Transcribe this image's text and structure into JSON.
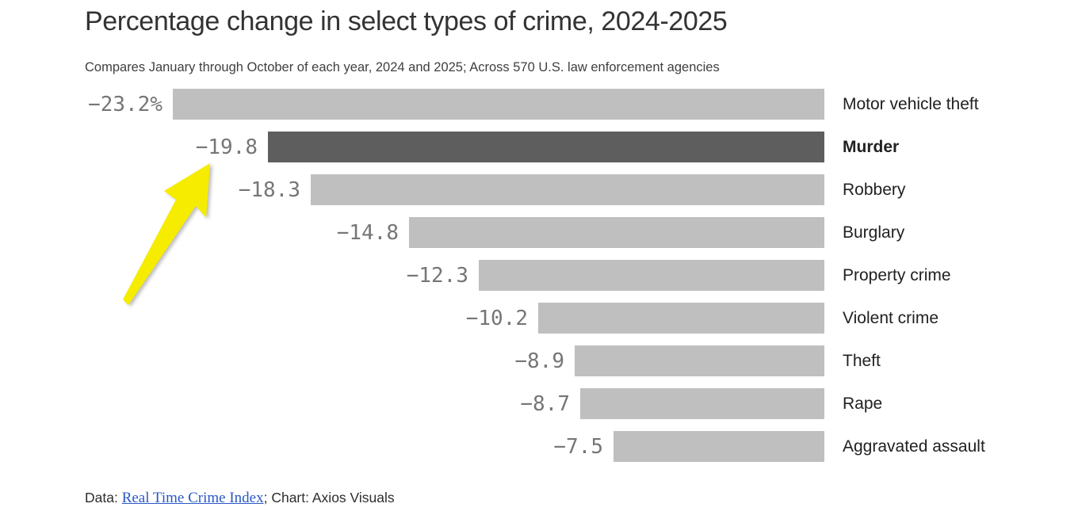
{
  "title": "Percentage change in select types of crime, 2024-2025",
  "subtitle": "Compares January through October of each year, 2024 and 2025; Across 570 U.S. law enforcement agencies",
  "chart_data": {
    "type": "bar",
    "orientation": "horizontal",
    "unit": "percent change",
    "categories": [
      "Motor vehicle theft",
      "Murder",
      "Robbery",
      "Burglary",
      "Property crime",
      "Violent crime",
      "Theft",
      "Rape",
      "Aggravated assault"
    ],
    "values": [
      -23.2,
      -19.8,
      -18.3,
      -14.8,
      -12.3,
      -10.2,
      -8.9,
      -8.7,
      -7.5
    ],
    "value_labels": [
      "−23.2%",
      "−19.8",
      "−18.3",
      "−14.8",
      "−12.3",
      "−10.2",
      "−8.9",
      "−8.7",
      "−7.5"
    ],
    "highlighted_category": "Murder",
    "bars_right_aligned": true,
    "gridlines": false,
    "value_range": [
      -23.2,
      0
    ],
    "annotation": {
      "shape": "arrow",
      "description": "hand-drawn yellow arrow pointing at the Murder value −19.8",
      "color": "#f6ec00"
    }
  },
  "colors": {
    "bar": "#bfbfbf",
    "bar_highlight": "#5e5e5e",
    "value_label": "#767676",
    "arrow": "#f6ec00",
    "link": "#2a58c6",
    "title": "#333333"
  },
  "footer": {
    "prefix": "Data: ",
    "link": "Real Time Crime Index",
    "suffix": "; Chart: Axios Visuals"
  }
}
